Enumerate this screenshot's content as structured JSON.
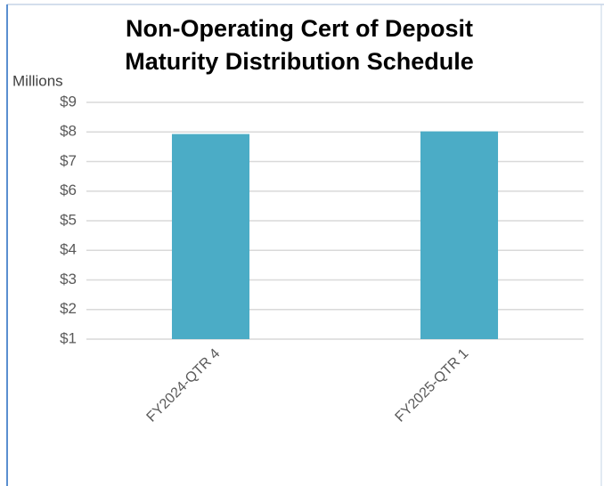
{
  "chart_data": {
    "type": "bar",
    "title": [
      "Non-Operating Cert of Deposit",
      "Maturity Distribution Schedule"
    ],
    "y_axis_label": "Millions",
    "categories": [
      "FY2024-QTR 4",
      "FY2025-QTR 1"
    ],
    "values": [
      7.93,
      8.02
    ],
    "color": "#4bacc6",
    "ylim": [
      1,
      9
    ],
    "yticks": [
      {
        "value": 1,
        "label": "$1"
      },
      {
        "value": 2,
        "label": "$2"
      },
      {
        "value": 3,
        "label": "$3"
      },
      {
        "value": 4,
        "label": "$4"
      },
      {
        "value": 5,
        "label": "$5"
      },
      {
        "value": 6,
        "label": "$6"
      },
      {
        "value": 7,
        "label": "$7"
      },
      {
        "value": 8,
        "label": "$8"
      },
      {
        "value": 9,
        "label": "$9"
      }
    ],
    "grid": true
  }
}
